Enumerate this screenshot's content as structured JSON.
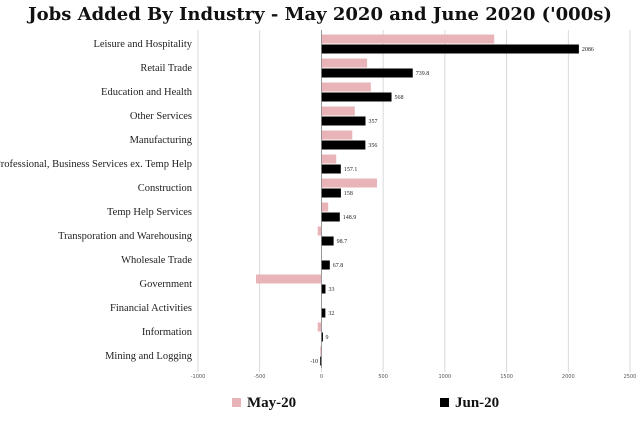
{
  "chart_data": {
    "type": "bar",
    "orientation": "horizontal",
    "title": "Jobs Added By Industry - May 2020 and June 2020 ('000s)",
    "xlabel": "",
    "ylabel": "",
    "xlim": [
      -1000,
      2500
    ],
    "x_ticks": [
      -1000,
      -500,
      0,
      500,
      1000,
      1500,
      2000,
      2500
    ],
    "x_tick_labels": [
      "-1000",
      "-500",
      "0",
      "500",
      "1000",
      "1500",
      "2000",
      "2500"
    ],
    "grid": true,
    "legend_position": "bottom",
    "categories": [
      "Leisure and Hospitality",
      "Retail Trade",
      "Education and Health",
      "Other Services",
      "Manufacturing",
      "Professional, Business Services ex. Temp Help",
      "Construction",
      "Temp Help Services",
      "Transporation and Warehousing",
      "Wholesale Trade",
      "Government",
      "Financial Activities",
      "Information",
      "Mining and Logging"
    ],
    "series": [
      {
        "name": "May-20",
        "color": "#e8b4b8",
        "values": [
          1400,
          370,
          400,
          270,
          250,
          120,
          450,
          55,
          -30,
          0,
          -530,
          0,
          -30,
          -10
        ],
        "labels": []
      },
      {
        "name": "Jun-20",
        "color": "#000000",
        "values": [
          2086,
          739.8,
          568,
          357,
          356,
          157.1,
          158,
          148.9,
          98.7,
          67.8,
          33,
          32,
          9,
          -10
        ],
        "labels": [
          "2086",
          "739.8",
          "568",
          "357",
          "356",
          "157.1",
          "158",
          "148.9",
          "98.7",
          "67.8",
          "33",
          "32",
          "9",
          "-10"
        ]
      }
    ]
  }
}
